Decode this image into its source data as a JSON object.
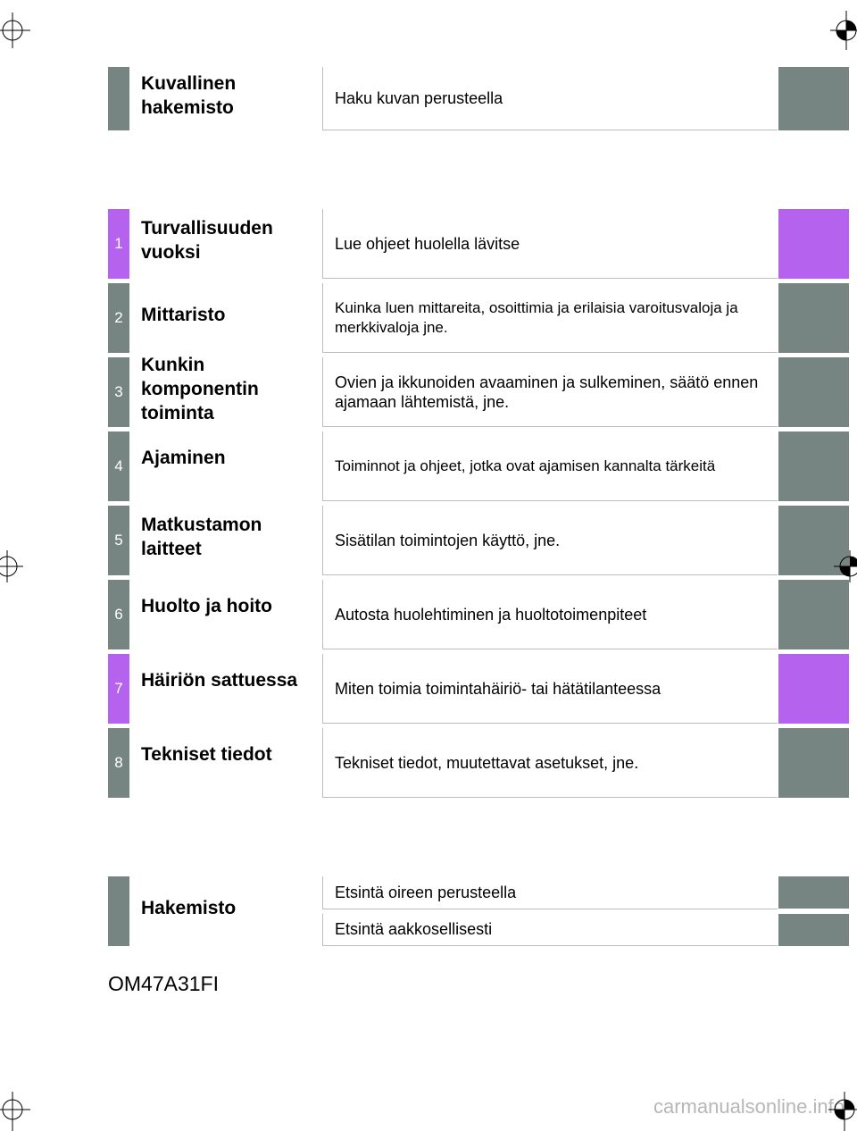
{
  "sections": [
    {
      "num": "",
      "title": "Kuvallinen\nhakemisto",
      "desc": "Haku kuvan perusteella",
      "color": "gray"
    },
    {
      "num": "1",
      "title": "Turvallisuuden\nvuoksi",
      "desc": "Lue ohjeet huolella lävitse",
      "color": "purple"
    },
    {
      "num": "2",
      "title": "Mittaristo",
      "desc": "Kuinka luen mittareita, osoittimia ja erilaisia varoitusvaloja ja merkkivaloja jne.",
      "color": "gray"
    },
    {
      "num": "3",
      "title": "Kunkin\nkomponentin\ntoiminta",
      "desc": "Ovien ja ikkunoiden avaaminen ja sulkeminen, säätö ennen ajamaan lähtemistä, jne.",
      "color": "gray"
    },
    {
      "num": "4",
      "title": "Ajaminen",
      "desc": "Toiminnot ja ohjeet, jotka ovat ajamisen kannalta tärkeitä",
      "color": "gray"
    },
    {
      "num": "5",
      "title": "Matkustamon\nlaitteet",
      "desc": "Sisätilan toimintojen käyttö, jne.",
      "color": "gray"
    },
    {
      "num": "6",
      "title": "Huolto ja hoito",
      "desc": "Autosta huolehtiminen ja huoltotoimenpiteet",
      "color": "gray"
    },
    {
      "num": "7",
      "title": "Häiriön sattuessa",
      "desc": "Miten toimia toimintahäiriö- tai hätätilanteessa",
      "color": "purple"
    },
    {
      "num": "8",
      "title": "Tekniset tiedot",
      "desc": "Tekniset tiedot, muutettavat asetukset, jne.",
      "color": "gray"
    }
  ],
  "index": {
    "title": "Hakemisto",
    "items": [
      "Etsintä oireen perusteella",
      "Etsintä aakkosellisesti"
    ]
  },
  "doc_code": "OM47A31FI",
  "watermark": "carmanualsonline.info",
  "colors": {
    "gray": "#778582",
    "purple": "#b562ee"
  }
}
